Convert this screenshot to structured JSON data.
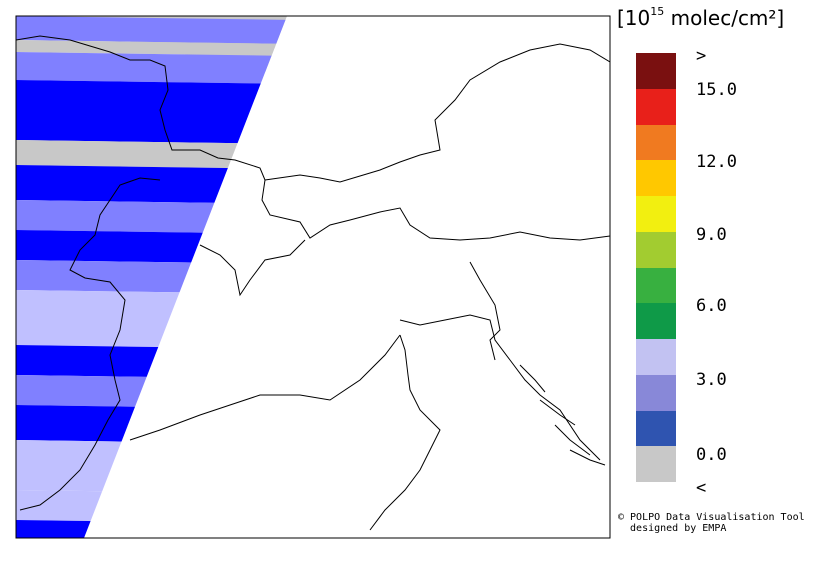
{
  "legend": {
    "unit_prefix": "[10",
    "unit_exp": "15",
    "unit_suffix": " molec/cm²]",
    "colors": [
      "#7a1010",
      "#e8201a",
      "#f07a20",
      "#ffc800",
      "#f2ef10",
      "#a2cc30",
      "#38b040",
      "#0f9a48",
      "#c2c2f2",
      "#8888d8",
      "#2f54b0",
      "#c8c8c8"
    ],
    "ticks": [
      ">",
      "15.0",
      "12.0",
      "9.0",
      "6.0",
      "3.0",
      "0.0",
      "<"
    ]
  },
  "credit": {
    "line1": "© POLPO Data Visualisation Tool",
    "line2": "  designed by EMPA"
  },
  "swath_colors": {
    "nodata": "#c8c8c8",
    "band_dark": "#0000ff",
    "band_mid": "#8080ff",
    "band_light": "#c0c0ff"
  }
}
